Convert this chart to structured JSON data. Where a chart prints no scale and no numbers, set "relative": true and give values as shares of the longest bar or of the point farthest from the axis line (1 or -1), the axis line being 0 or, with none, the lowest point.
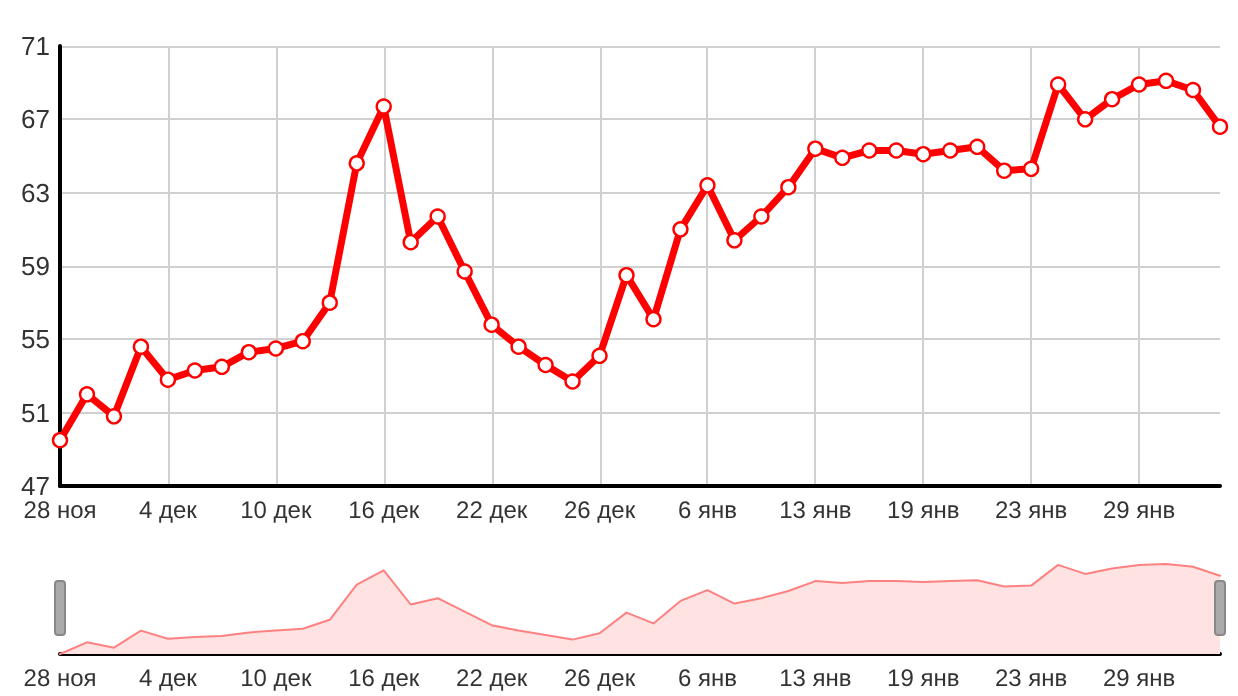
{
  "chart_data": [
    {
      "type": "line",
      "categories": [
        "28 ноя",
        null,
        null,
        null,
        "4 дек",
        null,
        null,
        null,
        "10 дек",
        null,
        null,
        null,
        "16 дек",
        null,
        null,
        null,
        "22 дек",
        null,
        null,
        null,
        "26 дек",
        null,
        null,
        null,
        "6 янв",
        null,
        null,
        null,
        "13 янв",
        null,
        null,
        null,
        "19 янв",
        null,
        null,
        null,
        "23 янв",
        null,
        null,
        null,
        "29 янв",
        null,
        null,
        null
      ],
      "values": [
        49.5,
        52.0,
        50.8,
        54.6,
        52.8,
        53.3,
        53.5,
        54.3,
        54.5,
        54.9,
        57.0,
        64.6,
        67.7,
        60.3,
        61.7,
        58.7,
        55.8,
        54.6,
        53.6,
        52.7,
        54.1,
        58.5,
        56.1,
        61.0,
        63.4,
        60.4,
        61.7,
        63.3,
        65.4,
        64.9,
        65.3,
        65.3,
        65.1,
        65.3,
        65.5,
        64.2,
        64.3,
        68.9,
        67.0,
        68.1,
        68.9,
        69.1,
        68.6,
        66.6
      ],
      "color": "#ff0000",
      "ylim": [
        47,
        71
      ],
      "yticks": [
        47,
        51,
        55,
        59,
        63,
        67,
        71
      ],
      "grid": true,
      "marker": "circle",
      "line_style": "solid"
    },
    {
      "type": "area",
      "relative": true,
      "categories": [
        "28 ноя",
        null,
        null,
        null,
        "4 дек",
        null,
        null,
        null,
        "10 дек",
        null,
        null,
        null,
        "16 дек",
        null,
        null,
        null,
        "22 дек",
        null,
        null,
        null,
        "26 дек",
        null,
        null,
        null,
        "6 янв",
        null,
        null,
        null,
        "13 янв",
        null,
        null,
        null,
        "19 янв",
        null,
        null,
        null,
        "23 янв",
        null,
        null,
        null,
        "29 янв",
        null,
        null,
        null
      ],
      "values": [
        0,
        0.13,
        0.07,
        0.26,
        0.17,
        0.19,
        0.2,
        0.24,
        0.26,
        0.28,
        0.38,
        0.77,
        0.93,
        0.55,
        0.62,
        0.47,
        0.32,
        0.26,
        0.21,
        0.16,
        0.23,
        0.46,
        0.34,
        0.59,
        0.71,
        0.56,
        0.62,
        0.7,
        0.81,
        0.79,
        0.81,
        0.81,
        0.8,
        0.81,
        0.82,
        0.75,
        0.76,
        0.99,
        0.89,
        0.95,
        0.99,
        1,
        0.97,
        0.87
      ],
      "color": "#ff8080"
    }
  ]
}
